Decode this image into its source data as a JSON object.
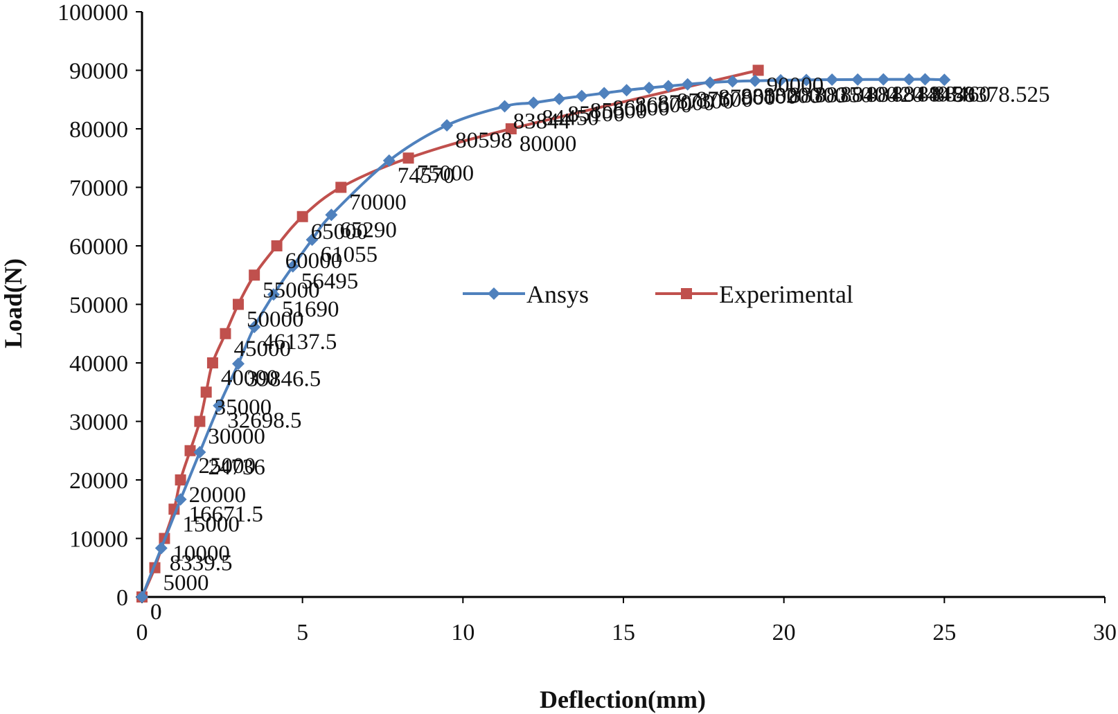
{
  "chart_data": {
    "type": "line",
    "xlabel": "Deflection(mm)",
    "ylabel": "Load(N)",
    "xlim": [
      0,
      30
    ],
    "ylim": [
      0,
      100000
    ],
    "xticks": [
      0,
      5,
      10,
      15,
      20,
      25,
      30
    ],
    "yticks": [
      0,
      10000,
      20000,
      30000,
      40000,
      50000,
      60000,
      70000,
      80000,
      90000,
      100000
    ],
    "grid": false,
    "legend_position": "center-right",
    "series": [
      {
        "name": "Ansys",
        "color": "#4f81bd",
        "marker": "diamond",
        "x": [
          0,
          0.6,
          1.2,
          1.8,
          2.4,
          3.0,
          3.5,
          4.1,
          4.7,
          5.3,
          5.9,
          7.7,
          9.5,
          11.3,
          12.2,
          13.0,
          13.7,
          14.4,
          15.1,
          15.8,
          16.4,
          17.0,
          17.7,
          18.4,
          19.1,
          19.9,
          20.7,
          21.5,
          22.3,
          23.1,
          23.9,
          24.4,
          25.0
        ],
        "y": [
          0,
          8339.5,
          16671.5,
          24736,
          32698.5,
          39846.5,
          46137.5,
          51690,
          56495,
          61055,
          65290,
          74570,
          80598,
          83844,
          84450,
          85100,
          85600,
          86100,
          86600,
          87000,
          87300,
          87600,
          87900,
          88100,
          88200,
          88300,
          88350,
          88400,
          88420,
          88440,
          88450,
          88460,
          88378.525
        ],
        "labels": [
          "0",
          "8339.5",
          "16671.5",
          "24736",
          "32698.5",
          "39846.5",
          "46137.5",
          "51690",
          "56495",
          "61055",
          "65290",
          "74570",
          "80598",
          "83844",
          "84450",
          "85100",
          "85600",
          "86100",
          "86600",
          "87000",
          "87300",
          "87600",
          "87900",
          "88100",
          "88200",
          "88300",
          "88350",
          "88400",
          "88420",
          "88440",
          "88450",
          "88460",
          "88378.525"
        ]
      },
      {
        "name": "Experimental",
        "color": "#c0504d",
        "marker": "square",
        "x": [
          0,
          0.4,
          0.7,
          1.0,
          1.2,
          1.5,
          1.8,
          2.0,
          2.2,
          2.6,
          3.0,
          3.5,
          4.2,
          5.0,
          6.2,
          8.3,
          11.5,
          19.2
        ],
        "y": [
          0,
          5000,
          10000,
          15000,
          20000,
          25000,
          30000,
          35000,
          40000,
          45000,
          50000,
          55000,
          60000,
          65000,
          70000,
          75000,
          80000,
          90000
        ],
        "labels": [
          "0",
          "5000",
          "10000",
          "15000",
          "20000",
          "25000",
          "30000",
          "35000",
          "40000",
          "45000",
          "50000",
          "55000",
          "60000",
          "65000",
          "70000",
          "75000",
          "80000",
          "90000"
        ]
      }
    ]
  }
}
